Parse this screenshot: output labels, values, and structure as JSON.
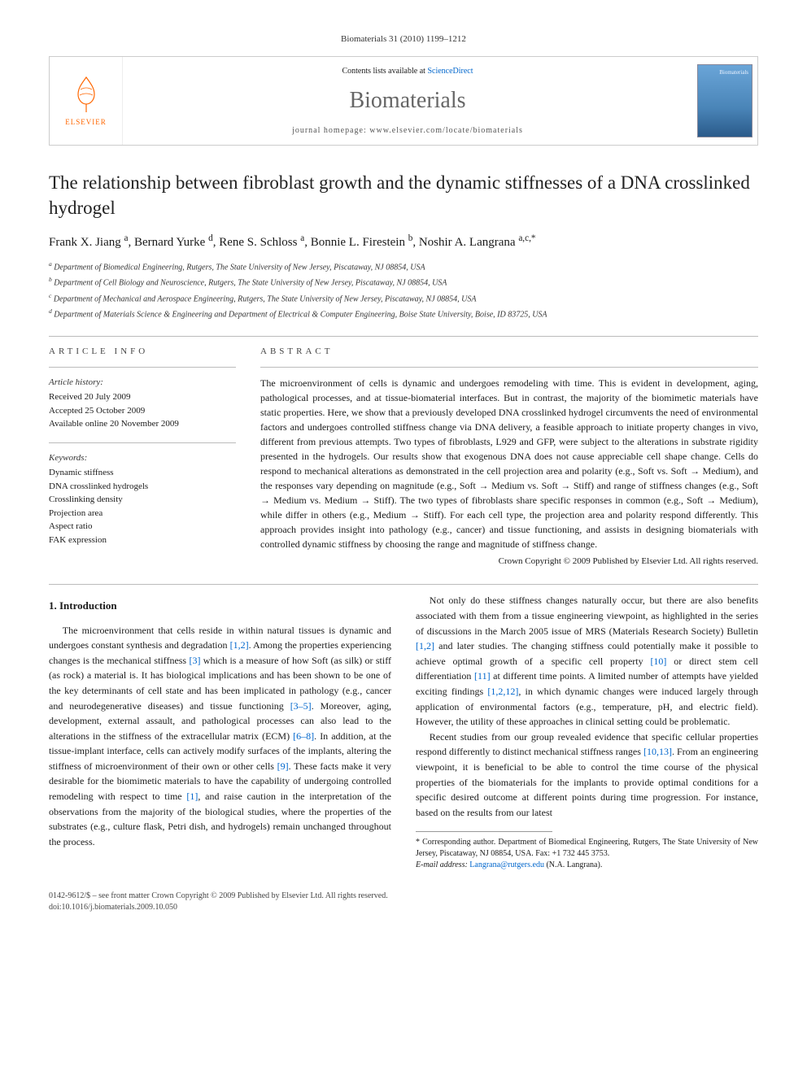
{
  "header": {
    "citation": "Biomaterials 31 (2010) 1199–1212",
    "contents_prefix": "Contents lists available at ",
    "contents_link": "ScienceDirect",
    "journal_name": "Biomaterials",
    "homepage_prefix": "journal homepage: ",
    "homepage_url": "www.elsevier.com/locate/biomaterials",
    "publisher_label": "ELSEVIER",
    "cover_label": "Biomaterials"
  },
  "article": {
    "title": "The relationship between fibroblast growth and the dynamic stiffnesses of a DNA crosslinked hydrogel",
    "authors_html": "Frank X. Jiang <sup>a</sup>, Bernard Yurke <sup>d</sup>, Rene S. Schloss <sup>a</sup>, Bonnie L. Firestein <sup>b</sup>, Noshir A. Langrana <sup>a,c,*</sup>",
    "affiliations": [
      "a Department of Biomedical Engineering, Rutgers, The State University of New Jersey, Piscataway, NJ 08854, USA",
      "b Department of Cell Biology and Neuroscience, Rutgers, The State University of New Jersey, Piscataway, NJ 08854, USA",
      "c Department of Mechanical and Aerospace Engineering, Rutgers, The State University of New Jersey, Piscataway, NJ 08854, USA",
      "d Department of Materials Science & Engineering and Department of Electrical & Computer Engineering, Boise State University, Boise, ID 83725, USA"
    ]
  },
  "info": {
    "section_label": "ARTICLE INFO",
    "history_label": "Article history:",
    "history": [
      "Received 20 July 2009",
      "Accepted 25 October 2009",
      "Available online 20 November 2009"
    ],
    "keywords_label": "Keywords:",
    "keywords": [
      "Dynamic stiffness",
      "DNA crosslinked hydrogels",
      "Crosslinking density",
      "Projection area",
      "Aspect ratio",
      "FAK expression"
    ]
  },
  "abstract": {
    "label": "ABSTRACT",
    "text": "The microenvironment of cells is dynamic and undergoes remodeling with time. This is evident in development, aging, pathological processes, and at tissue-biomaterial interfaces. But in contrast, the majority of the biomimetic materials have static properties. Here, we show that a previously developed DNA crosslinked hydrogel circumvents the need of environmental factors and undergoes controlled stiffness change via DNA delivery, a feasible approach to initiate property changes in vivo, different from previous attempts. Two types of fibroblasts, L929 and GFP, were subject to the alterations in substrate rigidity presented in the hydrogels. Our results show that exogenous DNA does not cause appreciable cell shape change. Cells do respond to mechanical alterations as demonstrated in the cell projection area and polarity (e.g., Soft vs. Soft → Medium), and the responses vary depending on magnitude (e.g., Soft → Medium vs. Soft → Stiff) and range of stiffness changes (e.g., Soft → Medium vs. Medium → Stiff). The two types of fibroblasts share specific responses in common (e.g., Soft → Medium), while differ in others (e.g., Medium → Stiff). For each cell type, the projection area and polarity respond differently. This approach provides insight into pathology (e.g., cancer) and tissue functioning, and assists in designing biomaterials with controlled dynamic stiffness by choosing the range and magnitude of stiffness change.",
    "copyright": "Crown Copyright © 2009 Published by Elsevier Ltd. All rights reserved."
  },
  "body": {
    "heading": "1. Introduction",
    "para1_pre": "The microenvironment that cells reside in within natural tissues is dynamic and undergoes constant synthesis and degradation ",
    "ref1": "[1,2]",
    "para1_mid1": ". Among the properties experiencing changes is the mechanical stiffness ",
    "ref2": "[3]",
    "para1_mid2": " which is a measure of how Soft (as silk) or stiff (as rock) a material is. It has biological implications and has been shown to be one of the key determinants of cell state and has been implicated in pathology (e.g., cancer and neurodegenerative diseases) and tissue functioning ",
    "ref3": "[3–5]",
    "para1_mid3": ". Moreover, aging, development, external assault, and pathological processes can also lead to the alterations in the stiffness of the extracellular matrix (ECM) ",
    "ref4": "[6–8]",
    "para1_mid4": ". In addition, at the tissue-implant interface, cells can actively modify surfaces of the implants, altering the stiffness of microenvironment of their own or other cells ",
    "ref5": "[9]",
    "para1_mid5": ". These facts make it very desirable for the biomimetic materials to have the capability of undergoing controlled remodeling with respect to time ",
    "ref6": "[1]",
    "para1_end": ", and raise caution in the interpretation of the observations from the majority of the biological studies, where the properties of the substrates (e.g., culture flask, Petri dish, and hydrogels) remain unchanged throughout the process.",
    "para2_pre": "Not only do these stiffness changes naturally occur, but there are also benefits associated with them from a tissue engineering viewpoint, as highlighted in the series of discussions in the March 2005 issue of MRS (Materials Research Society) Bulletin ",
    "ref7": "[1,2]",
    "para2_mid1": " and later studies. The changing stiffness could potentially make it possible to achieve optimal growth of a specific cell property ",
    "ref8": "[10]",
    "para2_mid2": " or direct stem cell differentiation ",
    "ref9": "[11]",
    "para2_mid3": " at different time points. A limited number of attempts have yielded exciting findings ",
    "ref10": "[1,2,12]",
    "para2_end": ", in which dynamic changes were induced largely through application of environmental factors (e.g., temperature, pH, and electric field). However, the utility of these approaches in clinical setting could be problematic.",
    "para3_pre": "Recent studies from our group revealed evidence that specific cellular properties respond differently to distinct mechanical stiffness ranges ",
    "ref11": "[10,13]",
    "para3_end": ". From an engineering viewpoint, it is beneficial to be able to control the time course of the physical properties of the biomaterials for the implants to provide optimal conditions for a specific desired outcome at different points during time progression. For instance, based on the results from our latest"
  },
  "footnote": {
    "text_pre": "* Corresponding author. Department of Biomedical Engineering, Rutgers, The State University of New Jersey, Piscataway, NJ 08854, USA. Fax: +1 732 445 3753.",
    "email_label": "E-mail address: ",
    "email": "Langrana@rutgers.edu",
    "email_suffix": " (N.A. Langrana)."
  },
  "bottom": {
    "line1": "0142-9612/$ – see front matter Crown Copyright © 2009 Published by Elsevier Ltd. All rights reserved.",
    "line2": "doi:10.1016/j.biomaterials.2009.10.050"
  },
  "colors": {
    "link": "#0066cc",
    "publisher": "#ff6600",
    "border": "#cccccc",
    "cover_top": "#6aa5d8",
    "cover_bottom": "#2a5a8a"
  }
}
